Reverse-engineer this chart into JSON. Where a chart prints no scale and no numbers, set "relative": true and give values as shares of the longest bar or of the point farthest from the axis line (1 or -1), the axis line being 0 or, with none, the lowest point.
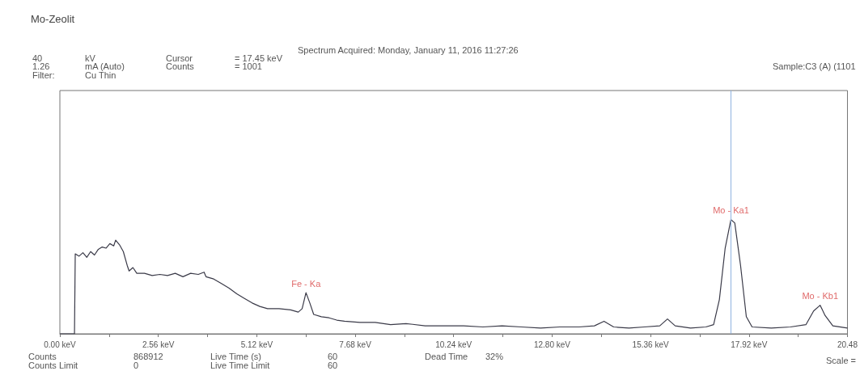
{
  "chart_data": {
    "type": "line",
    "title": "Mo-Zeolit",
    "relative": true,
    "marker": "none",
    "xlim": [
      0,
      20.48
    ],
    "xticks": [
      {
        "value": 0,
        "label": "0.00 keV"
      },
      {
        "value": 2.56,
        "label": "2.56 keV"
      },
      {
        "value": 5.12,
        "label": "5.12 keV"
      },
      {
        "value": 7.68,
        "label": "7.68 keV"
      },
      {
        "value": 10.24,
        "label": "10.24 keV"
      },
      {
        "value": 12.8,
        "label": "12.80 keV"
      },
      {
        "value": 15.36,
        "label": "15.36 keV"
      },
      {
        "value": 17.92,
        "label": "17.92 keV"
      },
      {
        "value": 20.48,
        "label": "20.48"
      }
    ],
    "series": [
      {
        "color": "#3a3a48",
        "x": [
          0,
          0.38,
          0.4,
          0.5,
          0.6,
          0.7,
          0.8,
          0.9,
          1.0,
          1.1,
          1.2,
          1.3,
          1.4,
          1.45,
          1.55,
          1.65,
          1.75,
          1.8,
          1.9,
          2.0,
          2.2,
          2.4,
          2.6,
          2.8,
          3.0,
          3.2,
          3.4,
          3.6,
          3.75,
          3.8,
          4.0,
          4.2,
          4.4,
          4.6,
          4.8,
          5.0,
          5.2,
          5.4,
          5.7,
          6.0,
          6.2,
          6.3,
          6.4,
          6.5,
          6.6,
          6.8,
          7.0,
          7.2,
          7.4,
          7.8,
          8.2,
          8.6,
          9.0,
          9.5,
          10.0,
          10.5,
          11.0,
          11.5,
          12.0,
          12.5,
          13.0,
          13.5,
          13.9,
          14.15,
          14.4,
          14.8,
          15.2,
          15.6,
          15.8,
          16.0,
          16.4,
          16.8,
          17.0,
          17.15,
          17.3,
          17.45,
          17.55,
          17.7,
          17.85,
          18.0,
          18.5,
          19.0,
          19.4,
          19.6,
          19.77,
          19.9,
          20.1,
          20.48
        ],
        "values": [
          0,
          0,
          0.7,
          0.68,
          0.71,
          0.67,
          0.72,
          0.69,
          0.74,
          0.76,
          0.75,
          0.79,
          0.77,
          0.82,
          0.78,
          0.72,
          0.6,
          0.55,
          0.58,
          0.53,
          0.53,
          0.51,
          0.52,
          0.51,
          0.53,
          0.5,
          0.53,
          0.52,
          0.54,
          0.5,
          0.48,
          0.44,
          0.4,
          0.35,
          0.31,
          0.27,
          0.24,
          0.22,
          0.22,
          0.21,
          0.19,
          0.22,
          0.36,
          0.27,
          0.17,
          0.15,
          0.14,
          0.12,
          0.11,
          0.1,
          0.1,
          0.08,
          0.09,
          0.07,
          0.07,
          0.07,
          0.06,
          0.07,
          0.06,
          0.05,
          0.06,
          0.06,
          0.07,
          0.11,
          0.06,
          0.05,
          0.06,
          0.07,
          0.13,
          0.07,
          0.05,
          0.06,
          0.08,
          0.3,
          0.75,
          1.0,
          0.97,
          0.6,
          0.15,
          0.06,
          0.05,
          0.06,
          0.08,
          0.2,
          0.25,
          0.16,
          0.07,
          0.05
        ]
      }
    ],
    "ref_lines": [
      {
        "axis": "x",
        "value": 17.45,
        "color": "#8fb3e0"
      }
    ],
    "annotations": [
      "Spectrum Acquired: Monday, January 11, 2016 11:27:26",
      "40",
      "kV",
      "Cursor",
      "= 17.45 keV",
      "1.26",
      "mA (Auto)",
      "Counts",
      "= 1001",
      "Filter:",
      "Cu Thin",
      "Sample:C3 (A) (1101",
      "Counts",
      "868912",
      "Live Time (s)",
      "60",
      "Dead Time",
      "32%",
      "Scale =",
      "Counts Limit",
      "0",
      "Live Time Limit",
      "60",
      {
        "text": "Fe - Ka",
        "x": 6.4,
        "y": 0.36
      },
      {
        "text": "Mo - Ka1",
        "x": 17.45,
        "y": 1.0
      },
      {
        "text": "Mo - Kb1",
        "x": 19.77,
        "y": 0.25
      }
    ]
  }
}
